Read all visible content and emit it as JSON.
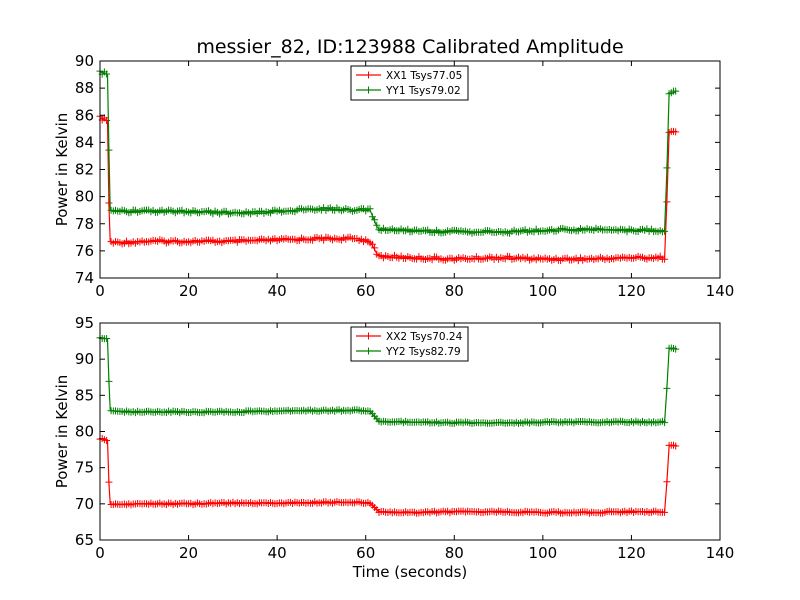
{
  "title": "messier_82, ID:123988 Calibrated Amplitude",
  "colors": {
    "red": "#ff0000",
    "green": "#008000"
  },
  "chart_data": [
    {
      "type": "line",
      "xlabel": "",
      "ylabel": "Power in Kelvin",
      "xlim": [
        0,
        140
      ],
      "ylim": [
        74,
        90
      ],
      "xticks": [
        "0",
        "20",
        "40",
        "60",
        "80",
        "100",
        "120",
        "140"
      ],
      "yticks": [
        "74",
        "76",
        "78",
        "80",
        "82",
        "84",
        "86",
        "88",
        "90"
      ],
      "legend_position": "top-center",
      "grid": false,
      "series": [
        {
          "name": "XX1 Tsys77.05",
          "color": "#ff0000",
          "x": [
            0,
            1,
            1.7,
            2,
            2.3,
            3,
            10,
            20,
            30,
            40,
            50,
            58,
            61,
            62.5,
            63,
            70,
            80,
            90,
            100,
            110,
            120,
            127.5,
            128,
            128.5,
            130
          ],
          "y": [
            85.8,
            85.7,
            85.6,
            79.5,
            76.7,
            76.6,
            76.7,
            76.7,
            76.7,
            76.8,
            76.9,
            76.9,
            76.7,
            75.8,
            75.6,
            75.5,
            75.4,
            75.5,
            75.4,
            75.4,
            75.5,
            75.5,
            79.7,
            84.7,
            84.8
          ]
        },
        {
          "name": "YY1 Tsys79.02",
          "color": "#008000",
          "x": [
            0,
            1,
            1.7,
            2,
            2.3,
            3,
            10,
            20,
            30,
            40,
            50,
            58,
            61,
            62.5,
            63,
            70,
            80,
            90,
            100,
            110,
            120,
            127.5,
            128,
            128.5,
            130
          ],
          "y": [
            89.2,
            89.1,
            89.0,
            83.5,
            79.0,
            78.9,
            78.9,
            78.9,
            78.8,
            78.9,
            79.1,
            79.0,
            79.0,
            77.8,
            77.6,
            77.5,
            77.4,
            77.4,
            77.5,
            77.6,
            77.5,
            77.5,
            82.0,
            87.6,
            87.7
          ]
        }
      ]
    },
    {
      "type": "line",
      "xlabel": "Time (seconds)",
      "ylabel": "Power in Kelvin",
      "xlim": [
        0,
        140
      ],
      "ylim": [
        65,
        95
      ],
      "xticks": [
        "0",
        "20",
        "40",
        "60",
        "80",
        "100",
        "120",
        "140"
      ],
      "yticks": [
        "65",
        "70",
        "75",
        "80",
        "85",
        "90",
        "95"
      ],
      "legend_position": "top-center",
      "grid": false,
      "series": [
        {
          "name": "XX2 Tsys70.24",
          "color": "#ff0000",
          "x": [
            0,
            1,
            1.7,
            2,
            2.3,
            3,
            10,
            20,
            30,
            40,
            50,
            58,
            61,
            62.5,
            63,
            70,
            80,
            90,
            100,
            110,
            120,
            127.5,
            128,
            128.5,
            130
          ],
          "y": [
            79.0,
            78.9,
            78.8,
            73.0,
            70.0,
            69.9,
            70.0,
            70.0,
            70.1,
            70.1,
            70.2,
            70.2,
            70.1,
            69.2,
            68.9,
            68.8,
            68.9,
            68.9,
            68.8,
            68.8,
            68.9,
            68.9,
            73.0,
            78.0,
            78.1
          ]
        },
        {
          "name": "YY2 Tsys82.79",
          "color": "#008000",
          "x": [
            0,
            1,
            1.7,
            2,
            2.3,
            3,
            10,
            20,
            30,
            40,
            50,
            58,
            61,
            62.5,
            63,
            70,
            80,
            90,
            100,
            110,
            120,
            127.5,
            128,
            128.5,
            130
          ],
          "y": [
            93.0,
            92.9,
            92.8,
            87.0,
            83.0,
            82.8,
            82.7,
            82.7,
            82.7,
            82.8,
            82.9,
            82.9,
            82.8,
            81.7,
            81.4,
            81.3,
            81.2,
            81.2,
            81.3,
            81.3,
            81.3,
            81.3,
            86.0,
            91.4,
            91.5
          ]
        }
      ]
    }
  ]
}
